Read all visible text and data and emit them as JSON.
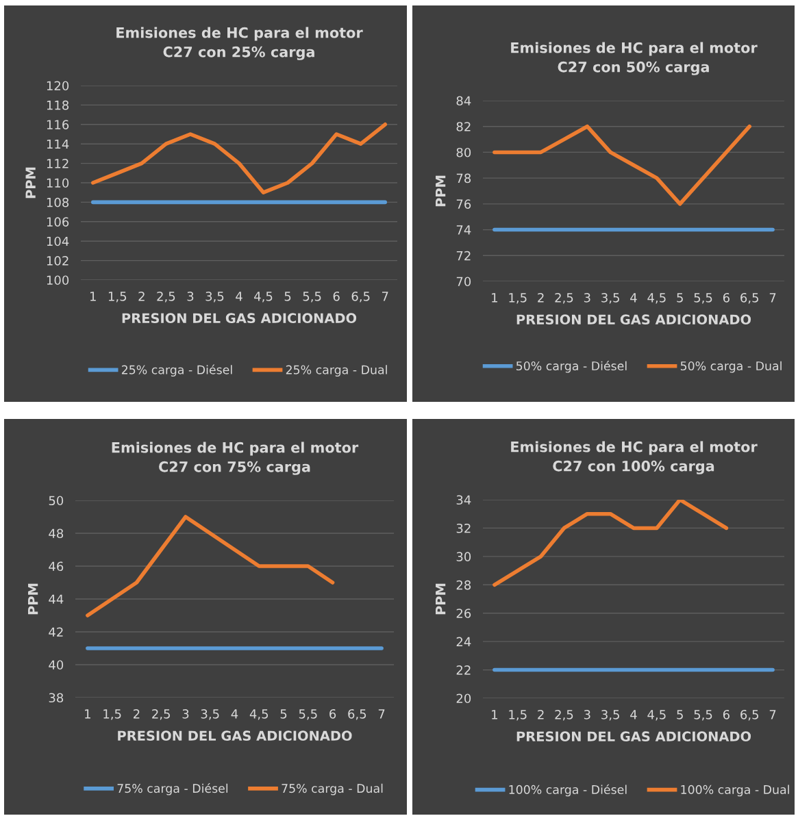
{
  "chart_data": [
    {
      "type": "line",
      "title": "Emisiones de HC para el motor\nC27 con 25% carga",
      "xlabel": "PRESION DEL GAS ADICIONADO",
      "ylabel": "PPM",
      "categories": [
        "1",
        "1,5",
        "2",
        "2,5",
        "3",
        "3,5",
        "4",
        "4,5",
        "5",
        "5,5",
        "6",
        "6,5",
        "7"
      ],
      "ylim": [
        100,
        120
      ],
      "yticks": [
        100,
        102,
        104,
        106,
        108,
        110,
        112,
        114,
        116,
        118,
        120
      ],
      "grid": "y",
      "legend": "bottom",
      "series": [
        {
          "name": "25% carga - Diésel",
          "color": "#5b9bd5",
          "values": [
            108,
            108,
            108,
            108,
            108,
            108,
            108,
            108,
            108,
            108,
            108,
            108,
            108
          ]
        },
        {
          "name": "25% carga - Dual",
          "color": "#ed7d31",
          "values": [
            110,
            111,
            112,
            114,
            115,
            114,
            112,
            109,
            110,
            112,
            115,
            114,
            116
          ]
        }
      ]
    },
    {
      "type": "line",
      "title": "Emisiones de HC para el motor\nC27 con 50% carga",
      "xlabel": "PRESION DEL GAS ADICIONADO",
      "ylabel": "PPM",
      "categories": [
        "1",
        "1,5",
        "2",
        "2,5",
        "3",
        "3,5",
        "4",
        "4,5",
        "5",
        "5,5",
        "6",
        "6,5",
        "7"
      ],
      "ylim": [
        70,
        84
      ],
      "yticks": [
        70,
        72,
        74,
        76,
        78,
        80,
        82,
        84
      ],
      "grid": "y",
      "legend": "bottom",
      "series": [
        {
          "name": "50% carga - Diésel",
          "color": "#5b9bd5",
          "values": [
            74,
            74,
            74,
            74,
            74,
            74,
            74,
            74,
            74,
            74,
            74,
            74,
            74
          ]
        },
        {
          "name": "50% carga - Dual",
          "color": "#ed7d31",
          "values": [
            80,
            80,
            80,
            81,
            82,
            80,
            79,
            78,
            76,
            78,
            80,
            82,
            null
          ]
        }
      ]
    },
    {
      "type": "line",
      "title": "Emisiones de HC para el motor\nC27 con 75% carga",
      "xlabel": "PRESION DEL GAS ADICIONADO",
      "ylabel": "PPM",
      "categories": [
        "1",
        "1,5",
        "2",
        "2,5",
        "3",
        "3,5",
        "4",
        "4,5",
        "5",
        "5,5",
        "6",
        "6,5",
        "7"
      ],
      "ylim": [
        38,
        50
      ],
      "yticks": [
        38,
        40,
        42,
        44,
        46,
        48,
        50
      ],
      "grid": "y",
      "legend": "bottom",
      "series": [
        {
          "name": "75% carga - Diésel",
          "color": "#5b9bd5",
          "values": [
            41,
            41,
            41,
            41,
            41,
            41,
            41,
            41,
            41,
            41,
            41,
            41,
            41
          ]
        },
        {
          "name": "75% carga - Dual",
          "color": "#ed7d31",
          "values": [
            43,
            44,
            45,
            47,
            49,
            48,
            47,
            46,
            46,
            46,
            45,
            null,
            null
          ]
        }
      ]
    },
    {
      "type": "line",
      "title": "Emisiones de HC para el motor\nC27 con 100% carga",
      "xlabel": "PRESION DEL GAS ADICIONADO",
      "ylabel": "PPM",
      "categories": [
        "1",
        "1,5",
        "2",
        "2,5",
        "3",
        "3,5",
        "4",
        "4,5",
        "5",
        "5,5",
        "6",
        "6,5",
        "7"
      ],
      "ylim": [
        20,
        34
      ],
      "yticks": [
        20,
        22,
        24,
        26,
        28,
        30,
        32,
        34
      ],
      "grid": "y",
      "legend": "bottom",
      "series": [
        {
          "name": "100% carga - Diésel",
          "color": "#5b9bd5",
          "values": [
            22,
            22,
            22,
            22,
            22,
            22,
            22,
            22,
            22,
            22,
            22,
            22,
            22
          ]
        },
        {
          "name": "100% carga - Dual",
          "color": "#ed7d31",
          "values": [
            28,
            29,
            30,
            32,
            33,
            33,
            32,
            32,
            34,
            33,
            32,
            null,
            null
          ]
        }
      ]
    }
  ]
}
